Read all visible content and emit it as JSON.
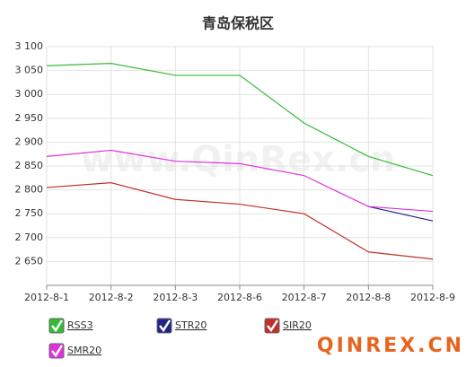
{
  "chart_data": {
    "type": "line",
    "title": "青岛保税区",
    "watermark": "www.QinRex.cn",
    "logo": "QINREX.CN",
    "categories": [
      "2012-8-1",
      "2012-8-2",
      "2012-8-3",
      "2012-8-6",
      "2012-8-7",
      "2012-8-8",
      "2012-8-9"
    ],
    "series": [
      {
        "name": "RSS3",
        "color": "#33bb33",
        "values": [
          3060,
          3065,
          3040,
          3040,
          2940,
          2870,
          2830
        ]
      },
      {
        "name": "STR20",
        "color": "#22228a",
        "values": [
          null,
          null,
          null,
          null,
          null,
          2765,
          2735
        ]
      },
      {
        "name": "SIR20",
        "color": "#c0302a",
        "values": [
          2805,
          2815,
          2780,
          2770,
          2750,
          2670,
          2655
        ]
      },
      {
        "name": "SMR20",
        "color": "#e030e0",
        "values": [
          2870,
          2883,
          2860,
          2855,
          2830,
          2765,
          2755
        ]
      }
    ],
    "ylim": [
      2600,
      3100
    ],
    "yticks": [
      {
        "value": 3100,
        "label": "3 100"
      },
      {
        "value": 3050,
        "label": "3 050"
      },
      {
        "value": 3000,
        "label": "3 000"
      },
      {
        "value": 2950,
        "label": "2 950"
      },
      {
        "value": 2900,
        "label": "2 900"
      },
      {
        "value": 2850,
        "label": "2 850"
      },
      {
        "value": 2800,
        "label": "2 800"
      },
      {
        "value": 2750,
        "label": "2 750"
      },
      {
        "value": 2700,
        "label": "2 700"
      },
      {
        "value": 2650,
        "label": "2 650"
      }
    ],
    "grid": true
  }
}
